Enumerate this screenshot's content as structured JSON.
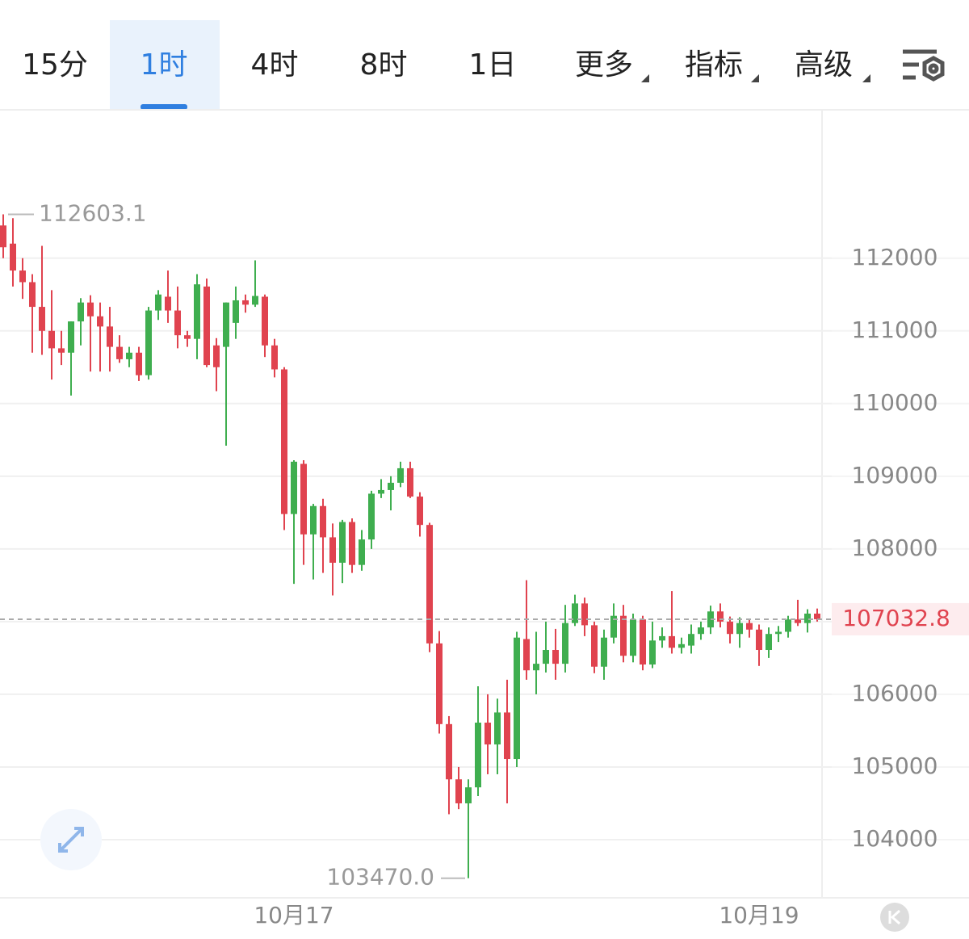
{
  "tabs": [
    "15分",
    "1时",
    "4时",
    "8时",
    "1日",
    "更多",
    "指标",
    "高级"
  ],
  "chart_data": {
    "type": "candlestick",
    "categories": [
      null,
      null,
      null,
      null,
      null,
      null,
      null,
      null,
      null,
      null,
      null,
      null,
      null,
      null,
      null,
      null,
      null,
      null,
      null,
      null,
      null,
      null,
      null,
      null,
      null,
      null,
      null,
      null,
      null,
      null,
      "10月17",
      null,
      null,
      null,
      null,
      null,
      null,
      null,
      null,
      null,
      null,
      null,
      null,
      null,
      null,
      null,
      null,
      null,
      null,
      null,
      null,
      null,
      null,
      null,
      null,
      null,
      null,
      null,
      null,
      null,
      null,
      null,
      null,
      null,
      null,
      null,
      null,
      null,
      null,
      null,
      null,
      null,
      null,
      null,
      null,
      null,
      null,
      null,
      "10月19",
      null,
      null,
      null,
      null,
      null,
      null
    ],
    "open": [
      112450,
      112200,
      111830,
      111670,
      111330,
      111000,
      110760,
      110700,
      111130,
      111390,
      111200,
      111060,
      110780,
      110610,
      110700,
      110390,
      111280,
      111470,
      111280,
      110940,
      110890,
      111610,
      110800,
      110780,
      111110,
      111420,
      111360,
      111470,
      110800,
      110470,
      108480,
      109170,
      108200,
      108590,
      108160,
      107810,
      108370,
      107780,
      108130,
      108760,
      108810,
      108910,
      109110,
      108720,
      108330,
      106700,
      105590,
      104830,
      104500,
      104720,
      105610,
      105310,
      105750,
      105110,
      106760,
      106330,
      106420,
      106610,
      106420,
      106980,
      107250,
      106950,
      106380,
      106780,
      107080,
      106530,
      107030,
      106410,
      106740,
      106800,
      106640,
      106670,
      106830,
      106920,
      107140,
      107000,
      106830,
      106980,
      106890,
      106610,
      106830,
      106860,
      107030,
      106980,
      107110
    ],
    "high": [
      112603.1,
      112550,
      112000,
      111780,
      112170,
      111560,
      111000,
      111130,
      111450,
      111490,
      111390,
      111330,
      110940,
      110780,
      110780,
      111330,
      111560,
      111830,
      111610,
      111000,
      111780,
      111720,
      110900,
      111390,
      111610,
      111500,
      111970,
      111500,
      110890,
      110500,
      109220,
      109220,
      108620,
      108690,
      108350,
      108400,
      108420,
      108260,
      108800,
      108960,
      109000,
      109200,
      109200,
      108780,
      108360,
      106870,
      105700,
      105000,
      104830,
      106110,
      106000,
      105940,
      106200,
      106860,
      107570,
      106860,
      107000,
      106900,
      107230,
      107370,
      107330,
      107000,
      106890,
      107250,
      107230,
      107110,
      107080,
      107000,
      106920,
      107420,
      106780,
      106960,
      107000,
      107220,
      107250,
      107070,
      107060,
      107040,
      106960,
      106920,
      106940,
      107080,
      107300,
      107170,
      107180
    ],
    "low": [
      112000,
      111610,
      111440,
      110700,
      110670,
      110330,
      110530,
      110110,
      110800,
      110440,
      110440,
      110440,
      110560,
      110500,
      110310,
      110330,
      111150,
      111110,
      110760,
      110780,
      110610,
      110500,
      110170,
      109420,
      110890,
      111250,
      111330,
      110640,
      110360,
      108260,
      107520,
      107780,
      107580,
      107670,
      107360,
      107530,
      107670,
      107700,
      108000,
      108700,
      108530,
      108850,
      108700,
      108170,
      106580,
      105460,
      104350,
      104420,
      103470,
      104600,
      104900,
      104900,
      104500,
      105000,
      106200,
      106000,
      106300,
      106200,
      106300,
      106940,
      106800,
      106290,
      106200,
      106700,
      106440,
      106440,
      106330,
      106360,
      106640,
      106560,
      106560,
      106560,
      106750,
      106830,
      106920,
      106700,
      106640,
      106780,
      106390,
      106500,
      106720,
      106780,
      106940,
      106850,
      107000
    ],
    "close": [
      112150,
      111830,
      111670,
      111330,
      111000,
      110760,
      110700,
      111130,
      111390,
      111200,
      111060,
      110780,
      110610,
      110700,
      110390,
      111280,
      111500,
      111280,
      110940,
      110890,
      111640,
      110530,
      110500,
      111390,
      111420,
      111360,
      111480,
      110800,
      110470,
      108480,
      109200,
      108200,
      108590,
      108160,
      107810,
      108370,
      107780,
      108130,
      108760,
      108810,
      108910,
      109110,
      108720,
      108330,
      106700,
      105590,
      104830,
      104500,
      104720,
      105610,
      105310,
      105750,
      105110,
      106780,
      106330,
      106420,
      106610,
      106420,
      106980,
      107250,
      106950,
      106380,
      106780,
      107080,
      106530,
      107030,
      106410,
      106740,
      106800,
      106640,
      106690,
      106830,
      106920,
      107140,
      107000,
      106830,
      106980,
      106890,
      106610,
      106830,
      106860,
      107030,
      106980,
      107110,
      107032.8
    ],
    "up_color": "#3fae4f",
    "down_color": "#e0434f",
    "ylim": [
      103200,
      114030
    ],
    "yticks": [
      104000,
      105000,
      106000,
      107000,
      108000,
      109000,
      110000,
      111000,
      112000
    ],
    "last_price": 107032.8,
    "max_marker": 112603.1,
    "min_marker": {
      "value": 103470,
      "label": "103470.0"
    },
    "grid": true
  }
}
